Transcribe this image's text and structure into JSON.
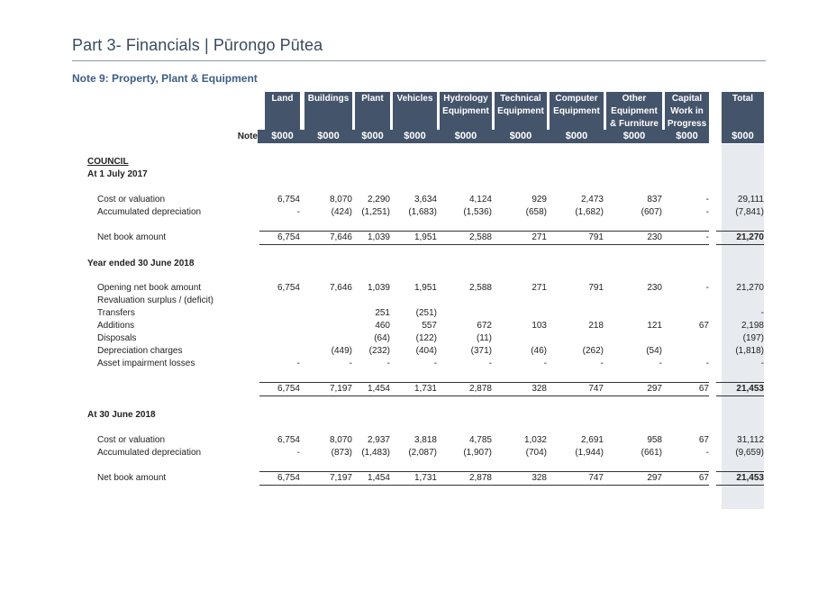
{
  "header": {
    "title": "Part 3- Financials | Pūrongo Pūtea",
    "note_title": "Note 9:  Property, Plant & Equipment"
  },
  "table": {
    "note_label": "Note",
    "columns": [
      {
        "lines": [
          "Land"
        ],
        "unit": "$000"
      },
      {
        "lines": [
          "Buildings"
        ],
        "unit": "$000"
      },
      {
        "lines": [
          "Plant"
        ],
        "unit": "$000"
      },
      {
        "lines": [
          "Vehicles"
        ],
        "unit": "$000"
      },
      {
        "lines": [
          "Hydrology",
          "Equipment"
        ],
        "unit": "$000"
      },
      {
        "lines": [
          "Technical",
          "Equipment"
        ],
        "unit": "$000"
      },
      {
        "lines": [
          "Computer",
          "Equipment"
        ],
        "unit": "$000"
      },
      {
        "lines": [
          "Other",
          "Equipment",
          "& Furniture"
        ],
        "unit": "$000"
      },
      {
        "lines": [
          "Capital",
          "Work in",
          "Progress"
        ],
        "unit": "$000"
      },
      {
        "lines": [
          "Total"
        ],
        "unit": "$000"
      }
    ],
    "sections": {
      "council": "COUNCIL",
      "at_2017": "At 1 July 2017",
      "year_2018": "Year ended 30 June 2018",
      "at_2018": "At 30 June 2018"
    },
    "rows": [
      {
        "label": "Cost or valuation",
        "values": [
          "6,754",
          "8,070",
          "2,290",
          "3,634",
          "4,124",
          "929",
          "2,473",
          "837",
          "-",
          "29,111"
        ]
      },
      {
        "label": "Accumulated depreciation",
        "values": [
          "-",
          "(424)",
          "(1,251)",
          "(1,683)",
          "(1,536)",
          "(658)",
          "(1,682)",
          "(607)",
          "-",
          "(7,841)"
        ]
      },
      {
        "label": "Net book amount",
        "values": [
          "6,754",
          "7,646",
          "1,039",
          "1,951",
          "2,588",
          "271",
          "791",
          "230",
          "-",
          "21,270"
        ]
      },
      {
        "label": "Opening net book amount",
        "values": [
          "6,754",
          "7,646",
          "1,039",
          "1,951",
          "2,588",
          "271",
          "791",
          "230",
          "-",
          "21,270"
        ]
      },
      {
        "label": "Revaluation surplus / (deficit)",
        "values": [
          "",
          "",
          "",
          "",
          "",
          "",
          "",
          "",
          "",
          ""
        ]
      },
      {
        "label": "Transfers",
        "values": [
          "",
          "",
          "251",
          "(251)",
          "",
          "",
          "",
          "",
          "",
          "-"
        ]
      },
      {
        "label": "Additions",
        "values": [
          "",
          "",
          "460",
          "557",
          "672",
          "103",
          "218",
          "121",
          "67",
          "2,198"
        ]
      },
      {
        "label": "Disposals",
        "values": [
          "",
          "",
          "(64)",
          "(122)",
          "(11)",
          "",
          "",
          "",
          "",
          "(197)"
        ]
      },
      {
        "label": "Depreciation charges",
        "values": [
          "",
          "(449)",
          "(232)",
          "(404)",
          "(371)",
          "(46)",
          "(262)",
          "(54)",
          "",
          "(1,818)"
        ]
      },
      {
        "label": "Asset impairment losses",
        "values": [
          "-",
          "-",
          "-",
          "-",
          "-",
          "-",
          "-",
          "-",
          "-",
          "-"
        ]
      },
      {
        "label": "",
        "values": [
          "6,754",
          "7,197",
          "1,454",
          "1,731",
          "2,878",
          "328",
          "747",
          "297",
          "67",
          "21,453"
        ]
      },
      {
        "label": "Cost or valuation",
        "values": [
          "6,754",
          "8,070",
          "2,937",
          "3,818",
          "4,785",
          "1,032",
          "2,691",
          "958",
          "67",
          "31,112"
        ]
      },
      {
        "label": "Accumulated depreciation",
        "values": [
          "-",
          "(873)",
          "(1,483)",
          "(2,087)",
          "(1,907)",
          "(704)",
          "(1,944)",
          "(661)",
          "-",
          "(9,659)"
        ]
      },
      {
        "label": "Net book amount",
        "values": [
          "6,754",
          "7,197",
          "1,454",
          "1,731",
          "2,878",
          "328",
          "747",
          "297",
          "67",
          "21,453"
        ]
      }
    ]
  }
}
